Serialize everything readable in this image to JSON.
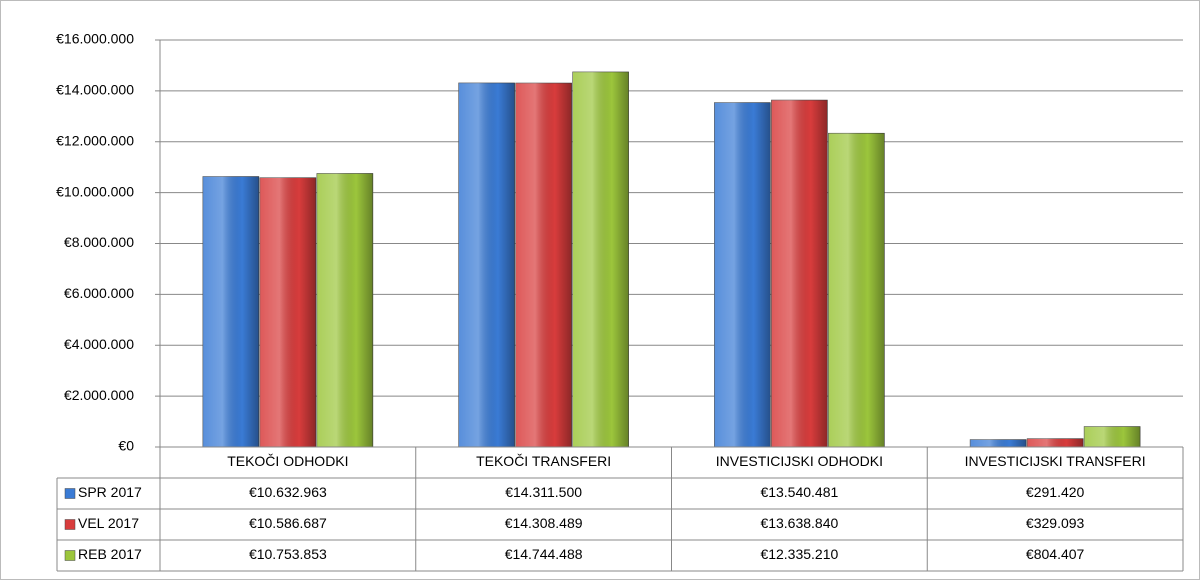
{
  "chart_data": {
    "type": "bar",
    "categories": [
      "TEKOČI ODHODKI",
      "TEKOČI TRANSFERI",
      "INVESTICIJSKI ODHODKI",
      "INVESTICIJSKI TRANSFERI"
    ],
    "series": [
      {
        "name": "SPR 2017",
        "color": "#3a7bd5",
        "values": [
          10632963,
          14311500,
          13540481,
          291420
        ],
        "value_labels": [
          "€10.632.963",
          "€14.311.500",
          "€13.540.481",
          "€291.420"
        ]
      },
      {
        "name": "VEL 2017",
        "color": "#d83c3c",
        "values": [
          10586687,
          14308489,
          13638840,
          329093
        ],
        "value_labels": [
          "€10.586.687",
          "€14.308.489",
          "€13.638.840",
          "€329.093"
        ]
      },
      {
        "name": "REB 2017",
        "color": "#9cc63c",
        "values": [
          10753853,
          14744488,
          12335210,
          804407
        ],
        "value_labels": [
          "€10.753.853",
          "€14.744.488",
          "€12.335.210",
          "€804.407"
        ]
      }
    ],
    "ylim": [
      0,
      16000000
    ],
    "yticks": [
      {
        "value": 0,
        "label": "€0"
      },
      {
        "value": 2000000,
        "label": "€2.000.000"
      },
      {
        "value": 4000000,
        "label": "€4.000.000"
      },
      {
        "value": 6000000,
        "label": "€6.000.000"
      },
      {
        "value": 8000000,
        "label": "€8.000.000"
      },
      {
        "value": 10000000,
        "label": "€10.000.000"
      },
      {
        "value": 12000000,
        "label": "€12.000.000"
      },
      {
        "value": 14000000,
        "label": "€14.000.000"
      },
      {
        "value": 16000000,
        "label": "€16.000.000"
      }
    ],
    "grid": true
  }
}
